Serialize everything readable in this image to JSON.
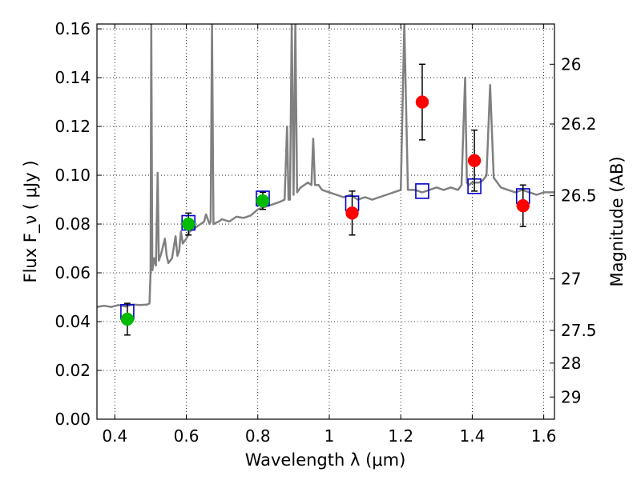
{
  "chart_data": {
    "type": "scatter",
    "xlabel": "Wavelength  λ (μm)",
    "ylabel": "Flux  F_ν  ( μJy )",
    "ylabel_right": "Magnitude (AB)",
    "xlim": [
      0.35,
      1.63
    ],
    "ylim": [
      0.0,
      0.162
    ],
    "grid": true,
    "x_ticks": [
      {
        "value": 0.4,
        "label": "0.4"
      },
      {
        "value": 0.6,
        "label": "0.6"
      },
      {
        "value": 0.8,
        "label": "0.8"
      },
      {
        "value": 1.0,
        "label": "1"
      },
      {
        "value": 1.2,
        "label": "1.2"
      },
      {
        "value": 1.4,
        "label": "1.4"
      },
      {
        "value": 1.6,
        "label": "1.6"
      }
    ],
    "y_ticks": [
      {
        "value": 0.0,
        "label": "0.00"
      },
      {
        "value": 0.02,
        "label": "0.02"
      },
      {
        "value": 0.04,
        "label": "0.04"
      },
      {
        "value": 0.06,
        "label": "0.06"
      },
      {
        "value": 0.08,
        "label": "0.08"
      },
      {
        "value": 0.1,
        "label": "0.10"
      },
      {
        "value": 0.12,
        "label": "0.12"
      },
      {
        "value": 0.14,
        "label": "0.14"
      },
      {
        "value": 0.16,
        "label": "0.16"
      }
    ],
    "right_ticks": [
      {
        "flux": 0.1455,
        "label": "26"
      },
      {
        "flux": 0.121,
        "label": "26.2"
      },
      {
        "flux": 0.0917,
        "label": "26.5"
      },
      {
        "flux": 0.0575,
        "label": "27"
      },
      {
        "flux": 0.0364,
        "label": "27.5"
      },
      {
        "flux": 0.023,
        "label": "28"
      },
      {
        "flux": 0.0091,
        "label": "29"
      }
    ],
    "series": [
      {
        "kind": "model_spectrum",
        "color": "#808080",
        "points": [
          [
            0.35,
            0.046
          ],
          [
            0.37,
            0.0465
          ],
          [
            0.39,
            0.046
          ],
          [
            0.41,
            0.0468
          ],
          [
            0.43,
            0.0462
          ],
          [
            0.45,
            0.047
          ],
          [
            0.47,
            0.0468
          ],
          [
            0.49,
            0.047
          ],
          [
            0.497,
            0.0475
          ],
          [
            0.5,
            0.06
          ],
          [
            0.502,
            0.162
          ],
          [
            0.505,
            0.061
          ],
          [
            0.51,
            0.066
          ],
          [
            0.515,
            0.063
          ],
          [
            0.52,
            0.101
          ],
          [
            0.523,
            0.065
          ],
          [
            0.53,
            0.068
          ],
          [
            0.54,
            0.074
          ],
          [
            0.545,
            0.067
          ],
          [
            0.55,
            0.064
          ],
          [
            0.56,
            0.066
          ],
          [
            0.57,
            0.075
          ],
          [
            0.575,
            0.067
          ],
          [
            0.58,
            0.069
          ],
          [
            0.585,
            0.077
          ],
          [
            0.59,
            0.072
          ],
          [
            0.6,
            0.074
          ],
          [
            0.61,
            0.077
          ],
          [
            0.62,
            0.078
          ],
          [
            0.63,
            0.079
          ],
          [
            0.64,
            0.08
          ],
          [
            0.65,
            0.081
          ],
          [
            0.655,
            0.084
          ],
          [
            0.66,
            0.082
          ],
          [
            0.665,
            0.08
          ],
          [
            0.668,
            0.081
          ],
          [
            0.672,
            0.162
          ],
          [
            0.676,
            0.08
          ],
          [
            0.69,
            0.081
          ],
          [
            0.7,
            0.082
          ],
          [
            0.72,
            0.081
          ],
          [
            0.74,
            0.083
          ],
          [
            0.76,
            0.0825
          ],
          [
            0.78,
            0.0835
          ],
          [
            0.8,
            0.086
          ],
          [
            0.82,
            0.087
          ],
          [
            0.84,
            0.088
          ],
          [
            0.86,
            0.089
          ],
          [
            0.875,
            0.09
          ],
          [
            0.882,
            0.12
          ],
          [
            0.886,
            0.09
          ],
          [
            0.89,
            0.09
          ],
          [
            0.895,
            0.162
          ],
          [
            0.9,
            0.092
          ],
          [
            0.905,
            0.162
          ],
          [
            0.91,
            0.093
          ],
          [
            0.92,
            0.095
          ],
          [
            0.94,
            0.097
          ],
          [
            0.95,
            0.096
          ],
          [
            0.955,
            0.115
          ],
          [
            0.96,
            0.096
          ],
          [
            0.97,
            0.096
          ],
          [
            0.98,
            0.094
          ],
          [
            1.0,
            0.093
          ],
          [
            1.02,
            0.092
          ],
          [
            1.04,
            0.091
          ],
          [
            1.06,
            0.092
          ],
          [
            1.08,
            0.09
          ],
          [
            1.1,
            0.091
          ],
          [
            1.12,
            0.09
          ],
          [
            1.14,
            0.091
          ],
          [
            1.16,
            0.092
          ],
          [
            1.18,
            0.093
          ],
          [
            1.2,
            0.094
          ],
          [
            1.21,
            0.162
          ],
          [
            1.22,
            0.094
          ],
          [
            1.24,
            0.094
          ],
          [
            1.26,
            0.093
          ],
          [
            1.28,
            0.094
          ],
          [
            1.3,
            0.095
          ],
          [
            1.32,
            0.094
          ],
          [
            1.34,
            0.095
          ],
          [
            1.36,
            0.094
          ],
          [
            1.37,
            0.096
          ],
          [
            1.38,
            0.14
          ],
          [
            1.385,
            0.097
          ],
          [
            1.39,
            0.096
          ],
          [
            1.4,
            0.097
          ],
          [
            1.42,
            0.097
          ],
          [
            1.43,
            0.098
          ],
          [
            1.44,
            0.1
          ],
          [
            1.45,
            0.137
          ],
          [
            1.46,
            0.099
          ],
          [
            1.48,
            0.095
          ],
          [
            1.5,
            0.094
          ],
          [
            1.52,
            0.093
          ],
          [
            1.54,
            0.094
          ],
          [
            1.56,
            0.093
          ],
          [
            1.58,
            0.092
          ],
          [
            1.6,
            0.093
          ],
          [
            1.63,
            0.093
          ]
        ]
      },
      {
        "kind": "model_photometry",
        "marker": "open-square",
        "color": "#0000cc",
        "points": [
          [
            0.435,
            0.044
          ],
          [
            0.606,
            0.0805
          ],
          [
            0.814,
            0.0905
          ],
          [
            1.064,
            0.0885
          ],
          [
            1.26,
            0.0935
          ],
          [
            1.406,
            0.0955
          ],
          [
            1.542,
            0.0915
          ]
        ]
      },
      {
        "kind": "observed_optical",
        "marker": "filled-circle",
        "color": "#00bb00",
        "points": [
          {
            "x": 0.435,
            "y": 0.041,
            "err": 0.0065
          },
          {
            "x": 0.606,
            "y": 0.08,
            "err": 0.0045
          },
          {
            "x": 0.814,
            "y": 0.0895,
            "err": 0.0035
          }
        ]
      },
      {
        "kind": "observed_nir",
        "marker": "filled-circle",
        "color": "#ff0000",
        "points": [
          {
            "x": 1.064,
            "y": 0.0845,
            "err": 0.009
          },
          {
            "x": 1.26,
            "y": 0.13,
            "err": 0.0155
          },
          {
            "x": 1.406,
            "y": 0.106,
            "err": 0.0125
          },
          {
            "x": 1.542,
            "y": 0.0875,
            "err": 0.0085
          }
        ]
      }
    ]
  }
}
